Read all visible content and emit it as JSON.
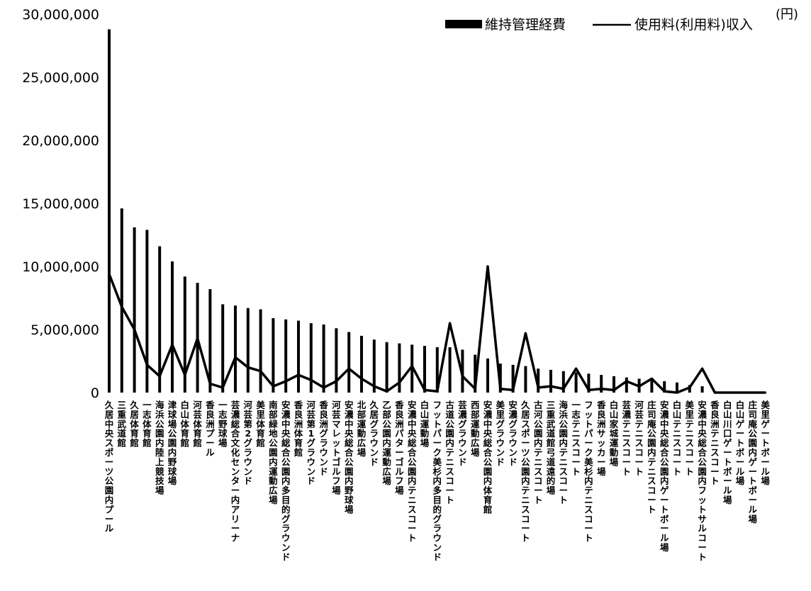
{
  "chart_data": {
    "type": "bar",
    "unit_label": "(円)",
    "ylim": [
      0,
      30000000
    ],
    "yticks": [
      "30,000,000",
      "25,000,000",
      "20,000,000",
      "15,000,000",
      "10,000,000",
      "5,000,000",
      "0"
    ],
    "ytick_values": [
      30000000,
      25000000,
      20000000,
      15000000,
      10000000,
      5000000,
      0
    ],
    "grid": false,
    "legend_position": "top-right",
    "categories": [
      "久居中央スポーツ公園内プール",
      "三重武道館",
      "久居体育館",
      "一志体育館",
      "海浜公園内陸上競技場",
      "津球場公園内野球場",
      "白山体育館",
      "河芸体育館",
      "香良洲プール",
      "一志野球場",
      "芸濃総合文化センター内アリーナ",
      "河芸第2グラウンド",
      "美里体育館",
      "南部緑地公園内運動広場",
      "安濃中央総合公園内多目的グラウンド",
      "香良洲体育館",
      "河芸第1グラウンド",
      "香良洲グラウンド",
      "河芸マレットゴルフ場",
      "安濃中央総合公園内野球場",
      "北部運動広場",
      "久居グラウンド",
      "乙部公園内運動広場",
      "香良洲パターゴルフ場",
      "安濃中央総合公園内テニスコート",
      "白山運動場",
      "フットパーク美杉内多目的グラウンド",
      "古道公園内テニスコート",
      "芸濃グラウンド",
      "西部運動広場",
      "安濃中央総合公園内体育館",
      "美里グラウンド",
      "安濃グラウンド",
      "久居スポーツ公園内テニスコート",
      "古河公園内テニスコート",
      "三重武道館弓道遠的場",
      "海浜公園内テニスコート",
      "一志テニスコート",
      "フットパーク美杉内テニスコート",
      "香良洲サッカー場",
      "白山家城運動場",
      "芸濃テニスコート",
      "河芸テニスコート",
      "庄司庵公園内テニスコート",
      "安濃中央総合公園内ゲートボール場",
      "白山テニスコート",
      "美里テニスコート",
      "安濃中央総合公園内フットサルコート",
      "香良洲テニスコート",
      "白山川口ゲートボール場",
      "白山ゲートボール場",
      "庄司庵公園内ゲートボール場",
      "美里ゲートボール場"
    ],
    "series": [
      {
        "name": "維持管理経費",
        "type": "bar",
        "color": "#000000",
        "values": [
          28800000,
          14600000,
          13100000,
          12900000,
          11600000,
          10400000,
          9200000,
          8700000,
          8200000,
          7000000,
          6900000,
          6700000,
          6600000,
          5900000,
          5800000,
          5700000,
          5500000,
          5400000,
          5100000,
          4800000,
          4500000,
          4200000,
          4000000,
          3900000,
          3800000,
          3700000,
          3600000,
          3600000,
          3400000,
          3000000,
          2700000,
          2300000,
          2200000,
          2100000,
          1900000,
          1800000,
          1700000,
          1600000,
          1500000,
          1400000,
          1300000,
          1200000,
          1100000,
          1000000,
          900000,
          800000,
          600000,
          500000,
          100000,
          0,
          0,
          0,
          0
        ]
      },
      {
        "name": "使用料(利用料)収入",
        "type": "line",
        "color": "#000000",
        "values": [
          9400000,
          6800000,
          5000000,
          2200000,
          1300000,
          3800000,
          1400000,
          4300000,
          700000,
          400000,
          2800000,
          2000000,
          1700000,
          500000,
          900000,
          1400000,
          1000000,
          400000,
          900000,
          1900000,
          1100000,
          500000,
          100000,
          800000,
          2100000,
          200000,
          100000,
          5500000,
          1300000,
          300000,
          10000000,
          300000,
          200000,
          4700000,
          400000,
          500000,
          300000,
          1900000,
          200000,
          300000,
          200000,
          900000,
          500000,
          1100000,
          100000,
          0,
          400000,
          1900000,
          0,
          0,
          0,
          0,
          0
        ]
      }
    ]
  }
}
